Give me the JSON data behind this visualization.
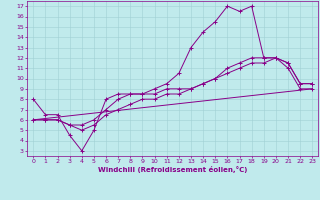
{
  "xlabel": "Windchill (Refroidissement éolien,°C)",
  "bg_color": "#c0eaec",
  "line_color": "#880088",
  "grid_color": "#a0d0d4",
  "xlim": [
    -0.5,
    23.5
  ],
  "ylim": [
    2.5,
    17.5
  ],
  "xticks": [
    0,
    1,
    2,
    3,
    4,
    5,
    6,
    7,
    8,
    9,
    10,
    11,
    12,
    13,
    14,
    15,
    16,
    17,
    18,
    19,
    20,
    21,
    22,
    23
  ],
  "yticks": [
    3,
    4,
    5,
    6,
    7,
    8,
    9,
    10,
    11,
    12,
    13,
    14,
    15,
    16,
    17
  ],
  "line1_x": [
    0,
    1,
    2,
    3,
    4,
    5,
    6,
    7,
    8,
    9,
    10,
    11,
    12,
    13,
    14,
    15,
    16,
    17,
    18,
    19,
    20,
    21,
    22,
    23
  ],
  "line1_y": [
    8,
    6.5,
    6.5,
    4.5,
    3,
    5,
    8,
    8.5,
    8.5,
    8.5,
    9,
    9.5,
    10.5,
    13,
    14.5,
    15.5,
    17,
    16.5,
    17,
    12,
    12,
    11.5,
    9.5,
    9.5
  ],
  "line2_x": [
    0,
    1,
    2,
    3,
    4,
    5,
    6,
    7,
    8,
    9,
    10,
    11,
    12,
    13,
    14,
    15,
    16,
    17,
    18,
    19,
    20,
    21,
    22,
    23
  ],
  "line2_y": [
    6,
    6,
    6,
    5.5,
    5.5,
    6,
    7,
    8,
    8.5,
    8.5,
    8.5,
    9,
    9,
    9,
    9.5,
    10,
    11,
    11.5,
    12,
    12,
    12,
    11.5,
    9.5,
    9.5
  ],
  "line3_x": [
    0,
    1,
    2,
    3,
    4,
    5,
    6,
    7,
    8,
    9,
    10,
    11,
    12,
    13,
    14,
    15,
    16,
    17,
    18,
    19,
    20,
    21,
    22,
    23
  ],
  "line3_y": [
    6,
    6,
    6,
    5.5,
    5,
    5.5,
    6.5,
    7,
    7.5,
    8,
    8,
    8.5,
    8.5,
    9,
    9.5,
    10,
    10.5,
    11,
    11.5,
    11.5,
    12,
    11,
    9,
    9
  ],
  "line4_x": [
    0,
    23
  ],
  "line4_y": [
    6,
    9
  ]
}
